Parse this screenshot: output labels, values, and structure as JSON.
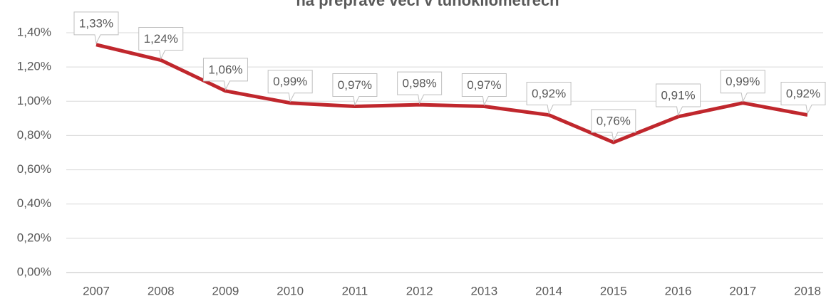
{
  "chart_data": {
    "type": "line",
    "title": "na přepravě věcí v tunokilometrech",
    "categories": [
      "2007",
      "2008",
      "2009",
      "2010",
      "2011",
      "2012",
      "2013",
      "2014",
      "2015",
      "2016",
      "2017",
      "2018"
    ],
    "values": [
      1.33,
      1.24,
      1.06,
      0.99,
      0.97,
      0.98,
      0.97,
      0.92,
      0.76,
      0.91,
      0.99,
      0.92
    ],
    "value_labels": [
      "1,33%",
      "1,24%",
      "1,06%",
      "0,99%",
      "0,97%",
      "0,98%",
      "0,97%",
      "0,92%",
      "0,76%",
      "0,91%",
      "0,99%",
      "0,92%"
    ],
    "color": "#c0272d",
    "ylim": [
      0,
      1.4
    ],
    "yticks": [
      {
        "value": 0,
        "label": "0,00%"
      },
      {
        "value": 0.2,
        "label": "0,20%"
      },
      {
        "value": 0.4,
        "label": "0,40%"
      },
      {
        "value": 0.6,
        "label": "0,60%"
      },
      {
        "value": 0.8,
        "label": "0,80%"
      },
      {
        "value": 1.0,
        "label": "1,00%"
      },
      {
        "value": 1.2,
        "label": "1,20%"
      },
      {
        "value": 1.4,
        "label": "1,40%"
      }
    ],
    "grid": true
  }
}
